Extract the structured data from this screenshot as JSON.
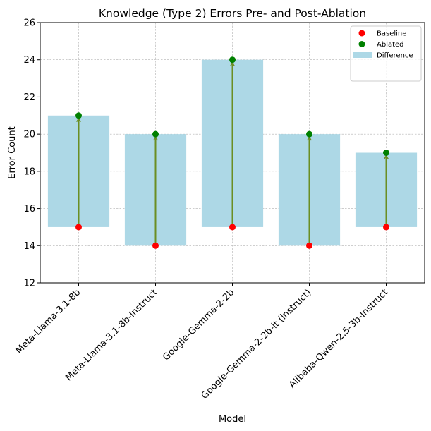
{
  "chart_data": {
    "type": "bar",
    "title": "Knowledge (Type 2) Errors Pre- and Post-Ablation",
    "xlabel": "Model",
    "ylabel": "Error Count",
    "ylim": [
      12,
      26
    ],
    "yticks": [
      12,
      14,
      16,
      18,
      20,
      22,
      24,
      26
    ],
    "categories": [
      "Meta-Llama-3.1-8b",
      "Meta-Llama-3.1-8b-Instruct",
      "Google-Gemma-2-2b",
      "Google-Gemma-2-2b-it (instruct)",
      "Alibaba-Qwen-2.5-3b-Instruct"
    ],
    "series": [
      {
        "name": "Baseline",
        "type": "scatter",
        "color": "#ff0000",
        "values": [
          15,
          14,
          15,
          14,
          15
        ]
      },
      {
        "name": "Ablated",
        "type": "scatter",
        "color": "#008000",
        "values": [
          21,
          20,
          24,
          20,
          19
        ]
      },
      {
        "name": "Difference",
        "type": "bar",
        "color": "#add8e6",
        "from": [
          15,
          14,
          15,
          14,
          15
        ],
        "to": [
          21,
          20,
          24,
          20,
          19
        ]
      }
    ],
    "arrow_color": "#6b8e23",
    "grid": true,
    "legend_position": "top-right"
  }
}
